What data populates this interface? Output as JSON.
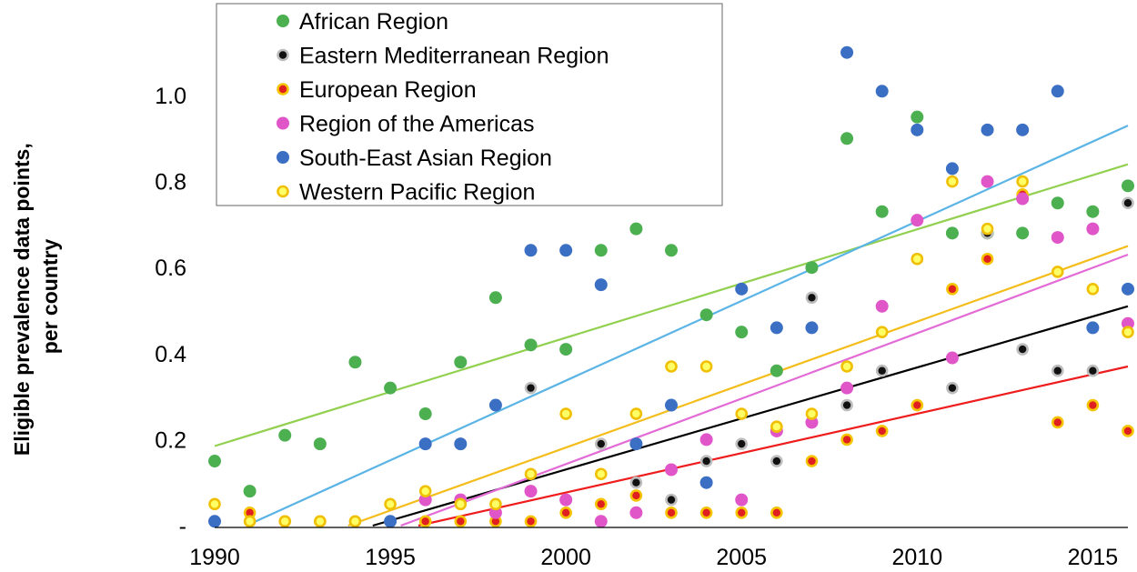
{
  "chart_data": {
    "type": "scatter",
    "ylabel": "Eligible prevalence data points, per country",
    "xlabel": "",
    "xlim": [
      1990,
      2016
    ],
    "ylim": [
      0,
      1.12
    ],
    "xticks": [
      1990,
      1995,
      2000,
      2005,
      2010,
      2015
    ],
    "yticks": [
      0,
      0.2,
      0.4,
      0.6,
      0.8,
      1.0
    ],
    "ytick_labels": [
      "-",
      "0.2",
      "0.4",
      "0.6",
      "0.8",
      "1.0"
    ],
    "grid": false,
    "legend_position": "top-left",
    "series": [
      {
        "name": "African Region",
        "color": "#4caf50",
        "marker": "filled",
        "trend_color": "#92d050",
        "trend": [
          [
            1990,
            0.185
          ],
          [
            2016,
            0.84
          ]
        ],
        "points": [
          [
            1990,
            0.15
          ],
          [
            1991,
            0.08
          ],
          [
            1992,
            0.21
          ],
          [
            1993,
            0.19
          ],
          [
            1994,
            0.38
          ],
          [
            1995,
            0.32
          ],
          [
            1996,
            0.26
          ],
          [
            1997,
            0.38
          ],
          [
            1998,
            0.53
          ],
          [
            1999,
            0.42
          ],
          [
            2000,
            0.41
          ],
          [
            2001,
            0.64
          ],
          [
            2002,
            0.69
          ],
          [
            2003,
            0.64
          ],
          [
            2004,
            0.49
          ],
          [
            2005,
            0.45
          ],
          [
            2006,
            0.36
          ],
          [
            2007,
            0.6
          ],
          [
            2008,
            0.9
          ],
          [
            2009,
            0.73
          ],
          [
            2010,
            0.95
          ],
          [
            2011,
            0.68
          ],
          [
            2012,
            0.68
          ],
          [
            2013,
            0.68
          ],
          [
            2014,
            0.75
          ],
          [
            2015,
            0.73
          ],
          [
            2016,
            0.79
          ]
        ]
      },
      {
        "name": "Eastern Mediterranean Region",
        "color": "#111111",
        "marker": "ring",
        "ring_color": "#bdbdbd",
        "trend_color": "#000000",
        "trend": [
          [
            1994.5,
            0.0
          ],
          [
            2016,
            0.51
          ]
        ],
        "points": [
          [
            1994,
            0.01
          ],
          [
            1996,
            0.06
          ],
          [
            1999,
            0.32
          ],
          [
            2000,
            0.06
          ],
          [
            2001,
            0.19
          ],
          [
            2002,
            0.1
          ],
          [
            2003,
            0.06
          ],
          [
            2004,
            0.15
          ],
          [
            2005,
            0.19
          ],
          [
            2006,
            0.15
          ],
          [
            2007,
            0.53
          ],
          [
            2008,
            0.28
          ],
          [
            2009,
            0.36
          ],
          [
            2010,
            0.62
          ],
          [
            2011,
            0.32
          ],
          [
            2012,
            0.68
          ],
          [
            2013,
            0.41
          ],
          [
            2014,
            0.36
          ],
          [
            2015,
            0.36
          ],
          [
            2016,
            0.75
          ]
        ]
      },
      {
        "name": "European Region",
        "color": "#e02020",
        "marker": "ring",
        "ring_color": "#f5c400",
        "trend_color": "#ee1c1c",
        "trend": [
          [
            1995.8,
            0.0
          ],
          [
            2016,
            0.37
          ]
        ],
        "points": [
          [
            1991,
            0.03
          ],
          [
            1992,
            0.01
          ],
          [
            1993,
            0.01
          ],
          [
            1996,
            0.01
          ],
          [
            1997,
            0.01
          ],
          [
            1998,
            0.01
          ],
          [
            1999,
            0.01
          ],
          [
            2000,
            0.03
          ],
          [
            2001,
            0.05
          ],
          [
            2002,
            0.07
          ],
          [
            2003,
            0.03
          ],
          [
            2004,
            0.03
          ],
          [
            2005,
            0.03
          ],
          [
            2006,
            0.03
          ],
          [
            2007,
            0.15
          ],
          [
            2008,
            0.2
          ],
          [
            2009,
            0.22
          ],
          [
            2010,
            0.28
          ],
          [
            2011,
            0.55
          ],
          [
            2012,
            0.62
          ],
          [
            2013,
            0.77
          ],
          [
            2014,
            0.24
          ],
          [
            2015,
            0.28
          ],
          [
            2016,
            0.22
          ]
        ]
      },
      {
        "name": "Region of the Americas",
        "color": "#e055c8",
        "marker": "filled",
        "trend_color": "#e36bd6",
        "trend": [
          [
            1995.3,
            0.0
          ],
          [
            2016,
            0.63
          ]
        ],
        "points": [
          [
            1996,
            0.06
          ],
          [
            1997,
            0.06
          ],
          [
            1998,
            0.03
          ],
          [
            1999,
            0.08
          ],
          [
            2000,
            0.06
          ],
          [
            2001,
            0.01
          ],
          [
            2002,
            0.03
          ],
          [
            2003,
            0.13
          ],
          [
            2004,
            0.2
          ],
          [
            2005,
            0.06
          ],
          [
            2006,
            0.22
          ],
          [
            2007,
            0.24
          ],
          [
            2008,
            0.32
          ],
          [
            2009,
            0.51
          ],
          [
            2010,
            0.71
          ],
          [
            2011,
            0.39
          ],
          [
            2012,
            0.8
          ],
          [
            2013,
            0.76
          ],
          [
            2014,
            0.67
          ],
          [
            2015,
            0.69
          ],
          [
            2016,
            0.47
          ]
        ]
      },
      {
        "name": "South-East Asian Region",
        "color": "#3a6fc4",
        "marker": "filled",
        "trend_color": "#5ab4e5",
        "trend": [
          [
            1990.9,
            0.0
          ],
          [
            2016,
            0.93
          ]
        ],
        "points": [
          [
            1990,
            0.01
          ],
          [
            1995,
            0.01
          ],
          [
            1996,
            0.19
          ],
          [
            1997,
            0.19
          ],
          [
            1998,
            0.28
          ],
          [
            1999,
            0.64
          ],
          [
            2000,
            0.64
          ],
          [
            2001,
            0.56
          ],
          [
            2002,
            0.19
          ],
          [
            2003,
            0.28
          ],
          [
            2004,
            0.1
          ],
          [
            2005,
            0.55
          ],
          [
            2006,
            0.46
          ],
          [
            2007,
            0.46
          ],
          [
            2008,
            1.1
          ],
          [
            2009,
            1.01
          ],
          [
            2010,
            0.92
          ],
          [
            2011,
            0.83
          ],
          [
            2012,
            0.92
          ],
          [
            2013,
            0.92
          ],
          [
            2014,
            1.01
          ],
          [
            2015,
            0.46
          ],
          [
            2016,
            0.55
          ]
        ]
      },
      {
        "name": "Western Pacific Region",
        "color": "#ffff66",
        "marker": "ring",
        "ring_color": "#f0c000",
        "trend_color": "#f3bd1c",
        "trend": [
          [
            1993.8,
            0.0
          ],
          [
            2016,
            0.65
          ]
        ],
        "points": [
          [
            1990,
            0.05
          ],
          [
            1991,
            0.01
          ],
          [
            1992,
            0.01
          ],
          [
            1993,
            0.01
          ],
          [
            1994,
            0.01
          ],
          [
            1995,
            0.05
          ],
          [
            1996,
            0.08
          ],
          [
            1997,
            0.05
          ],
          [
            1998,
            0.05
          ],
          [
            1999,
            0.12
          ],
          [
            2000,
            0.26
          ],
          [
            2001,
            0.12
          ],
          [
            2002,
            0.26
          ],
          [
            2003,
            0.37
          ],
          [
            2004,
            0.37
          ],
          [
            2005,
            0.26
          ],
          [
            2006,
            0.23
          ],
          [
            2007,
            0.26
          ],
          [
            2008,
            0.37
          ],
          [
            2009,
            0.45
          ],
          [
            2010,
            0.62
          ],
          [
            2011,
            0.8
          ],
          [
            2012,
            0.69
          ],
          [
            2013,
            0.8
          ],
          [
            2014,
            0.59
          ],
          [
            2015,
            0.55
          ],
          [
            2016,
            0.45
          ]
        ]
      }
    ]
  }
}
